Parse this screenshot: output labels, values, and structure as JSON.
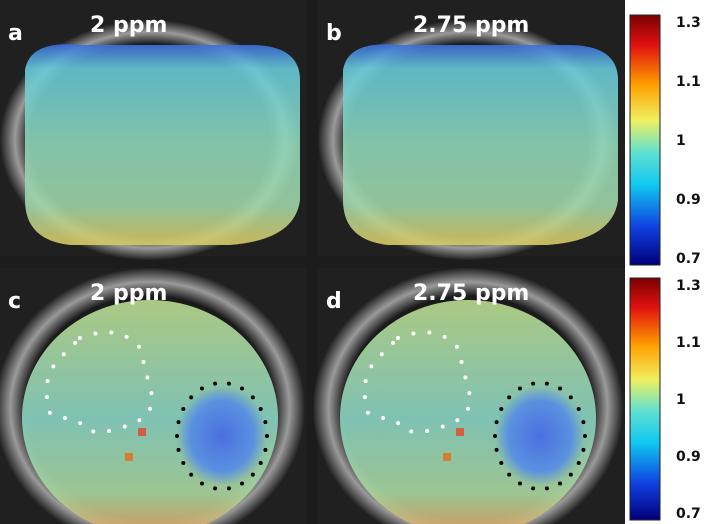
{
  "panels": [
    {
      "label": "a",
      "title": "2 ppm"
    },
    {
      "label": "b",
      "title": "2.75 ppm"
    },
    {
      "label": "c",
      "title": "2 ppm"
    },
    {
      "label": "d",
      "title": "2.75 ppm"
    }
  ],
  "colorbars": [
    {
      "ticks": [
        1.3,
        1.1,
        1,
        0.9,
        0.7
      ]
    },
    {
      "ticks": [
        1.3,
        1.1,
        1,
        0.9,
        0.7
      ]
    }
  ]
}
